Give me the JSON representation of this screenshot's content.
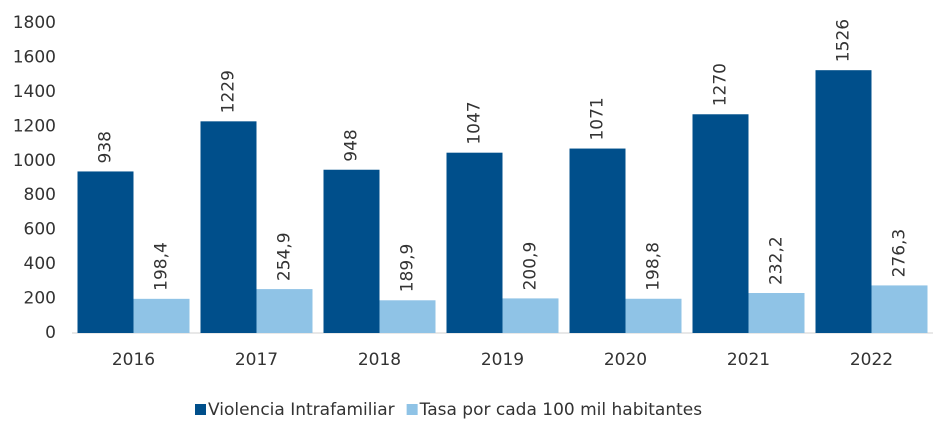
{
  "chart_data": {
    "type": "bar",
    "categories": [
      "2016",
      "2017",
      "2018",
      "2019",
      "2020",
      "2021",
      "2022"
    ],
    "series": [
      {
        "name": "Violencia Intrafamiliar",
        "color": "#004f8b",
        "values": [
          938,
          1229,
          948,
          1047,
          1071,
          1270,
          1526
        ]
      },
      {
        "name": "Tasa por cada 100 mil habitantes",
        "color": "#8fc3e6",
        "values": [
          198.4,
          254.9,
          189.9,
          200.9,
          198.8,
          232.2,
          276.3
        ],
        "value_labels": [
          "198,4",
          "254,9",
          "189,9",
          "200,9",
          "198,8",
          "232,2",
          "276,3"
        ]
      }
    ],
    "ylim": [
      0,
      1800
    ],
    "yticks": [
      0,
      200,
      400,
      600,
      800,
      1000,
      1200,
      1400,
      1600,
      1800
    ],
    "grid": false,
    "legend": "bottom"
  }
}
